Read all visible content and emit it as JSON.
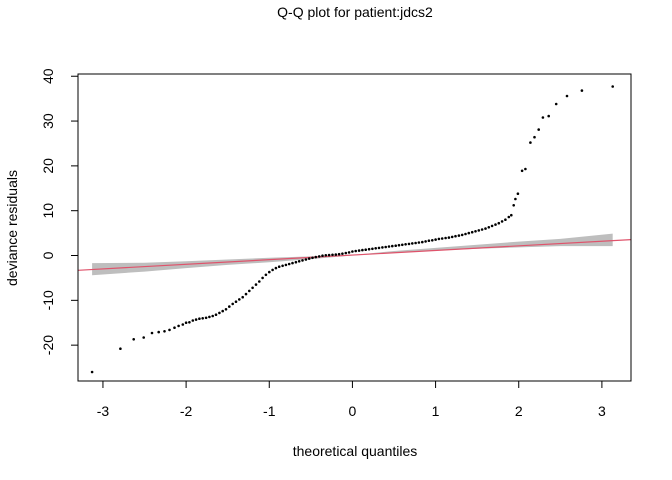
{
  "chart_data": {
    "type": "scatter",
    "title": "Q-Q plot for patient:jdcs2",
    "xlabel": "theoretical quantiles",
    "ylabel": "deviance residuals",
    "xlim": [
      -3.3,
      3.35
    ],
    "ylim": [
      -28,
      40.5
    ],
    "x_ticks": [
      -3,
      -2,
      -1,
      0,
      1,
      2,
      3
    ],
    "y_ticks": [
      -20,
      -10,
      0,
      10,
      20,
      30,
      40
    ],
    "grid": false,
    "series": [
      {
        "kind": "points",
        "color": "#000000",
        "points": [
          [
            -3.13,
            -26.0
          ],
          [
            -2.79,
            -20.8
          ],
          [
            -2.63,
            -18.7
          ],
          [
            -2.51,
            -18.3
          ],
          [
            -2.41,
            -17.3
          ],
          [
            -2.33,
            -17.1
          ],
          [
            -2.26,
            -16.9
          ],
          [
            -2.2,
            -16.6
          ],
          [
            -2.14,
            -16.1
          ],
          [
            -2.09,
            -15.7
          ],
          [
            -2.04,
            -15.4
          ],
          [
            -2.0,
            -15.0
          ],
          [
            -1.96,
            -14.9
          ],
          [
            -1.92,
            -14.5
          ],
          [
            -1.88,
            -14.3
          ],
          [
            -1.84,
            -14.1
          ],
          [
            -1.8,
            -14.0
          ],
          [
            -1.76,
            -13.9
          ],
          [
            -1.72,
            -13.7
          ],
          [
            -1.68,
            -13.5
          ],
          [
            -1.64,
            -13.2
          ],
          [
            -1.6,
            -12.8
          ],
          [
            -1.56,
            -12.4
          ],
          [
            -1.52,
            -12.0
          ],
          [
            -1.48,
            -11.4
          ],
          [
            -1.44,
            -10.8
          ],
          [
            -1.4,
            -10.3
          ],
          [
            -1.36,
            -9.8
          ],
          [
            -1.32,
            -9.3
          ],
          [
            -1.28,
            -8.6
          ],
          [
            -1.24,
            -7.9
          ],
          [
            -1.2,
            -7.2
          ],
          [
            -1.16,
            -6.5
          ],
          [
            -1.12,
            -5.8
          ],
          [
            -1.08,
            -5.0
          ],
          [
            -1.04,
            -4.3
          ],
          [
            -1.0,
            -3.7
          ],
          [
            -0.96,
            -3.2
          ],
          [
            -0.92,
            -2.8
          ],
          [
            -0.88,
            -2.5
          ],
          [
            -0.84,
            -2.3
          ],
          [
            -0.8,
            -2.1
          ],
          [
            -0.76,
            -1.9
          ],
          [
            -0.72,
            -1.7
          ],
          [
            -0.68,
            -1.5
          ],
          [
            -0.64,
            -1.3
          ],
          [
            -0.6,
            -1.1
          ],
          [
            -0.56,
            -0.9
          ],
          [
            -0.52,
            -0.7
          ],
          [
            -0.48,
            -0.5
          ],
          [
            -0.44,
            -0.35
          ],
          [
            -0.4,
            -0.2
          ],
          [
            -0.36,
            -0.05
          ],
          [
            -0.32,
            0.05
          ],
          [
            -0.28,
            0.1
          ],
          [
            -0.24,
            0.15
          ],
          [
            -0.2,
            0.2
          ],
          [
            -0.16,
            0.3
          ],
          [
            -0.12,
            0.4
          ],
          [
            -0.08,
            0.55
          ],
          [
            -0.04,
            0.7
          ],
          [
            0.0,
            0.9
          ],
          [
            0.04,
            1.0
          ],
          [
            0.08,
            1.1
          ],
          [
            0.12,
            1.2
          ],
          [
            0.16,
            1.3
          ],
          [
            0.2,
            1.4
          ],
          [
            0.24,
            1.5
          ],
          [
            0.28,
            1.6
          ],
          [
            0.32,
            1.7
          ],
          [
            0.36,
            1.8
          ],
          [
            0.4,
            1.9
          ],
          [
            0.44,
            2.0
          ],
          [
            0.48,
            2.1
          ],
          [
            0.52,
            2.2
          ],
          [
            0.56,
            2.3
          ],
          [
            0.6,
            2.4
          ],
          [
            0.64,
            2.5
          ],
          [
            0.68,
            2.6
          ],
          [
            0.72,
            2.7
          ],
          [
            0.76,
            2.8
          ],
          [
            0.8,
            2.9
          ],
          [
            0.84,
            3.0
          ],
          [
            0.88,
            3.15
          ],
          [
            0.92,
            3.3
          ],
          [
            0.96,
            3.4
          ],
          [
            1.0,
            3.55
          ],
          [
            1.04,
            3.7
          ],
          [
            1.08,
            3.8
          ],
          [
            1.12,
            3.9
          ],
          [
            1.16,
            4.0
          ],
          [
            1.2,
            4.15
          ],
          [
            1.24,
            4.3
          ],
          [
            1.28,
            4.45
          ],
          [
            1.32,
            4.6
          ],
          [
            1.36,
            4.8
          ],
          [
            1.4,
            5.0
          ],
          [
            1.44,
            5.2
          ],
          [
            1.48,
            5.4
          ],
          [
            1.52,
            5.6
          ],
          [
            1.56,
            5.8
          ],
          [
            1.6,
            6.0
          ],
          [
            1.64,
            6.3
          ],
          [
            1.68,
            6.6
          ],
          [
            1.72,
            6.9
          ],
          [
            1.76,
            7.2
          ],
          [
            1.8,
            7.6
          ],
          [
            1.84,
            8.0
          ],
          [
            1.88,
            8.6
          ],
          [
            1.91,
            9.0
          ],
          [
            1.94,
            11.2
          ],
          [
            1.96,
            12.6
          ],
          [
            1.99,
            13.8
          ],
          [
            2.04,
            18.9
          ],
          [
            2.08,
            19.3
          ],
          [
            2.14,
            25.2
          ],
          [
            2.19,
            26.4
          ],
          [
            2.24,
            28.1
          ],
          [
            2.29,
            30.8
          ],
          [
            2.36,
            31.1
          ],
          [
            2.45,
            33.8
          ],
          [
            2.58,
            35.6
          ],
          [
            2.76,
            36.8
          ],
          [
            3.13,
            37.7
          ]
        ]
      },
      {
        "kind": "confidence-band",
        "color": "#bebebe",
        "x": [
          -3.13,
          -2.5,
          -2.0,
          -1.5,
          -1.0,
          -0.5,
          0.0,
          0.5,
          1.0,
          1.5,
          2.0,
          2.5,
          3.13
        ],
        "lower": [
          -4.4,
          -3.6,
          -2.8,
          -2.1,
          -1.5,
          -0.8,
          0.0,
          0.6,
          1.1,
          1.5,
          1.8,
          2.1,
          2.1
        ],
        "upper": [
          -1.7,
          -1.6,
          -1.3,
          -0.9,
          -0.5,
          -0.2,
          0.1,
          1.0,
          1.7,
          2.4,
          3.1,
          3.7,
          4.9
        ]
      },
      {
        "kind": "reference-line",
        "color": "#df536b",
        "intercept": 0.1,
        "slope": 1.03
      }
    ]
  }
}
